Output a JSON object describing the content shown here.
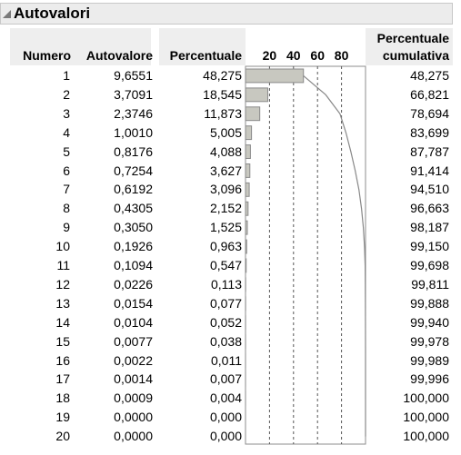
{
  "report": {
    "title": "Autovalori"
  },
  "columns": {
    "numero": "Numero",
    "autovalore": "Autovalore",
    "percentuale": "Percentuale",
    "axis_ticks": [
      "20",
      "40",
      "60",
      "80"
    ],
    "percentuale_cumulativa_line1": "Percentuale",
    "percentuale_cumulativa_line2": "cumulativa"
  },
  "rows": [
    {
      "numero": "1",
      "autovalore": "9,6551",
      "percentuale": "48,275",
      "cumulativa": "48,275"
    },
    {
      "numero": "2",
      "autovalore": "3,7091",
      "percentuale": "18,545",
      "cumulativa": "66,821"
    },
    {
      "numero": "3",
      "autovalore": "2,3746",
      "percentuale": "11,873",
      "cumulativa": "78,694"
    },
    {
      "numero": "4",
      "autovalore": "1,0010",
      "percentuale": "5,005",
      "cumulativa": "83,699"
    },
    {
      "numero": "5",
      "autovalore": "0,8176",
      "percentuale": "4,088",
      "cumulativa": "87,787"
    },
    {
      "numero": "6",
      "autovalore": "0,7254",
      "percentuale": "3,627",
      "cumulativa": "91,414"
    },
    {
      "numero": "7",
      "autovalore": "0,6192",
      "percentuale": "3,096",
      "cumulativa": "94,510"
    },
    {
      "numero": "8",
      "autovalore": "0,4305",
      "percentuale": "2,152",
      "cumulativa": "96,663"
    },
    {
      "numero": "9",
      "autovalore": "0,3050",
      "percentuale": "1,525",
      "cumulativa": "98,187"
    },
    {
      "numero": "10",
      "autovalore": "0,1926",
      "percentuale": "0,963",
      "cumulativa": "99,150"
    },
    {
      "numero": "11",
      "autovalore": "0,1094",
      "percentuale": "0,547",
      "cumulativa": "99,698"
    },
    {
      "numero": "12",
      "autovalore": "0,0226",
      "percentuale": "0,113",
      "cumulativa": "99,811"
    },
    {
      "numero": "13",
      "autovalore": "0,0154",
      "percentuale": "0,077",
      "cumulativa": "99,888"
    },
    {
      "numero": "14",
      "autovalore": "0,0104",
      "percentuale": "0,052",
      "cumulativa": "99,940"
    },
    {
      "numero": "15",
      "autovalore": "0,0077",
      "percentuale": "0,038",
      "cumulativa": "99,978"
    },
    {
      "numero": "16",
      "autovalore": "0,0022",
      "percentuale": "0,011",
      "cumulativa": "99,989"
    },
    {
      "numero": "17",
      "autovalore": "0,0014",
      "percentuale": "0,007",
      "cumulativa": "99,996"
    },
    {
      "numero": "18",
      "autovalore": "0,0009",
      "percentuale": "0,004",
      "cumulativa": "100,000"
    },
    {
      "numero": "19",
      "autovalore": "0,0000",
      "percentuale": "0,000",
      "cumulativa": "100,000"
    },
    {
      "numero": "20",
      "autovalore": "0,0000",
      "percentuale": "0,000",
      "cumulativa": "100,000"
    }
  ],
  "chart_data": {
    "type": "bar",
    "orientation": "horizontal",
    "categories": [
      "1",
      "2",
      "3",
      "4",
      "5",
      "6",
      "7",
      "8",
      "9",
      "10",
      "11",
      "12",
      "13",
      "14",
      "15",
      "16",
      "17",
      "18",
      "19",
      "20"
    ],
    "series": [
      {
        "values": [
          48.275,
          18.545,
          11.873,
          5.005,
          4.088,
          3.627,
          3.096,
          2.152,
          1.525,
          0.963,
          0.547,
          0.113,
          0.077,
          0.052,
          0.038,
          0.011,
          0.007,
          0.004,
          0.0,
          0.0
        ]
      },
      {
        "type": "line",
        "values": [
          48.275,
          66.821,
          78.694,
          83.699,
          87.787,
          91.414,
          94.51,
          96.663,
          98.187,
          99.15,
          99.698,
          99.811,
          99.888,
          99.94,
          99.978,
          99.989,
          99.996,
          100.0,
          100.0,
          100.0
        ]
      }
    ],
    "xlim": [
      0,
      100
    ],
    "x_ticks": [
      20,
      40,
      60,
      80
    ],
    "grid": "dashed vertical reference lines at ticks",
    "bar_color": "#c8c8c0",
    "bar_edge": "#8a8a8a",
    "line_color": "#888888"
  }
}
